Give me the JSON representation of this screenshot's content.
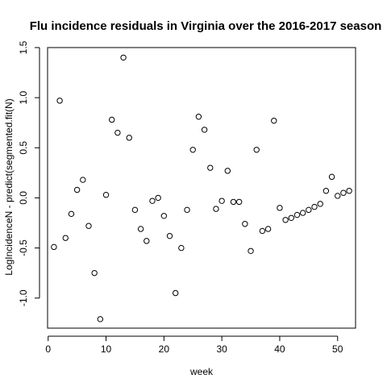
{
  "chart_data": {
    "type": "scatter",
    "title": "Flu incidence residuals in Virginia over the 2016-2017 season",
    "xlabel": "week",
    "ylabel": "LogIncidenceN - predict(segmented.fit(N)",
    "xlim": [
      -0.1,
      53.1
    ],
    "ylim": [
      -1.3,
      1.5
    ],
    "xticks": [
      0,
      10,
      20,
      30,
      40,
      50
    ],
    "yticks": [
      -1.0,
      -0.5,
      0.0,
      0.5,
      1.0,
      1.5
    ],
    "xtick_labels": [
      "0",
      "10",
      "20",
      "30",
      "40",
      "50"
    ],
    "ytick_labels": [
      "-1.0",
      "-0.5",
      "0.0",
      "0.5",
      "1.0",
      "1.5"
    ],
    "grid": false,
    "marker": "open-circle",
    "x": [
      1,
      2,
      3,
      4,
      5,
      6,
      7,
      8,
      9,
      10,
      11,
      12,
      13,
      14,
      15,
      16,
      17,
      18,
      19,
      20,
      21,
      22,
      23,
      24,
      25,
      26,
      27,
      28,
      29,
      30,
      31,
      32,
      33,
      34,
      35,
      36,
      37,
      38,
      39,
      40,
      41,
      42,
      43,
      44,
      45,
      46,
      47,
      48,
      49,
      50,
      51,
      52
    ],
    "y": [
      -0.49,
      0.97,
      -0.4,
      -0.16,
      0.08,
      0.18,
      -0.28,
      -0.75,
      -1.21,
      0.03,
      0.78,
      0.65,
      1.4,
      0.6,
      -0.12,
      -0.31,
      -0.43,
      -0.03,
      0.0,
      -0.18,
      -0.38,
      -0.95,
      -0.5,
      -0.12,
      0.48,
      0.81,
      0.68,
      0.3,
      -0.11,
      -0.03,
      0.27,
      -0.04,
      -0.04,
      -0.26,
      -0.53,
      0.48,
      -0.33,
      -0.31,
      0.77,
      -0.1,
      -0.22,
      -0.2,
      -0.17,
      -0.15,
      -0.12,
      -0.09,
      -0.06,
      0.07,
      0.21,
      0.02,
      0.05,
      0.07
    ]
  }
}
